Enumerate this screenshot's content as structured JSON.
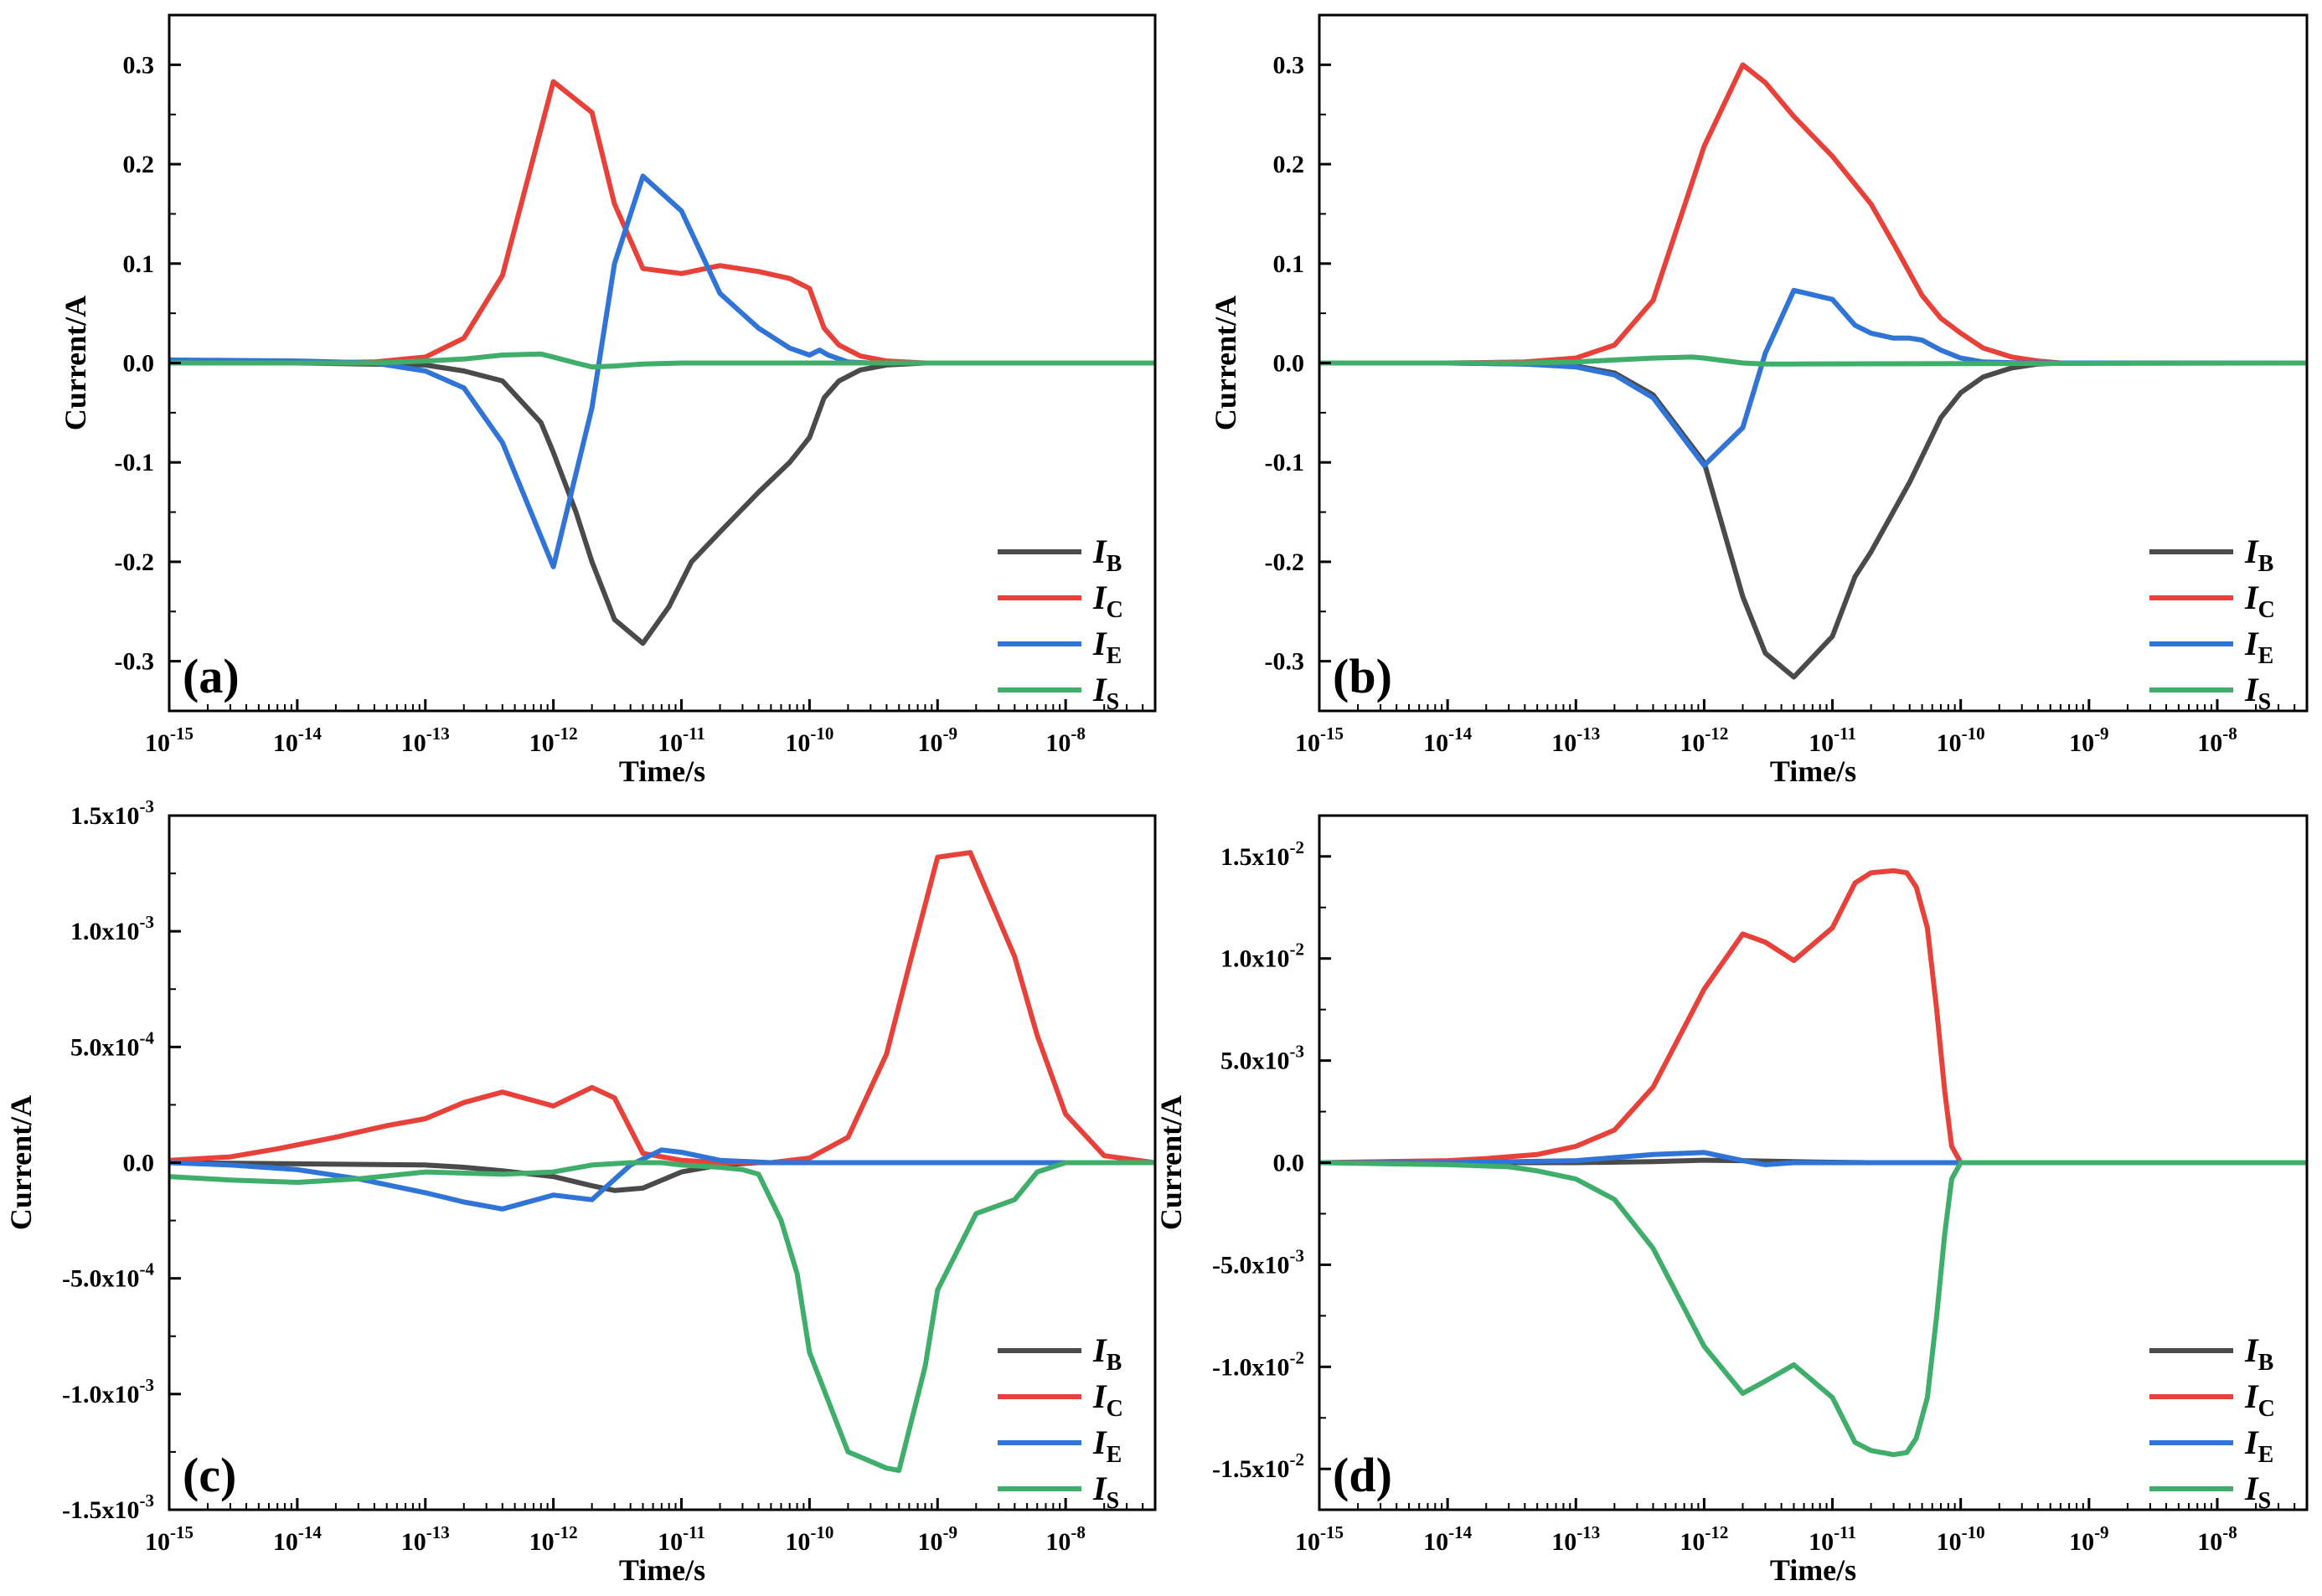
{
  "chart_data": [
    {
      "type": "line",
      "panel_label": "(a)",
      "xlabel": "Time/s",
      "ylabel": "Current/A",
      "x_scale": "log",
      "xlim": [
        1e-15,
        5e-08
      ],
      "ylim": [
        -0.35,
        0.35
      ],
      "x_tick_exponents": [
        "-15",
        "-14",
        "-13",
        "-12",
        "-11",
        "-10",
        "-9",
        "-8"
      ],
      "y_ticks": [
        -0.3,
        -0.2,
        -0.1,
        0.0,
        0.1,
        0.2,
        0.3
      ],
      "y_tick_labels": [
        "-0.3",
        "-0.2",
        "-0.1",
        "0.0",
        "0.1",
        "0.2",
        "0.3"
      ],
      "legend_position": "bottom-right",
      "series": [
        {
          "name": "I_B",
          "color": "#4a4a4a",
          "x": [
            1e-15,
            1e-14,
            1e-13,
            2e-13,
            4e-13,
            8e-13,
            1e-12,
            1.5e-12,
            2e-12,
            3e-12,
            5e-12,
            8e-12,
            1.2e-11,
            2e-11,
            4e-11,
            7e-11,
            1e-10,
            1.3e-10,
            1.7e-10,
            2.5e-10,
            4e-10,
            8e-10,
            5e-08
          ],
          "y": [
            0.0,
            0.0,
            -0.002,
            -0.008,
            -0.018,
            -0.06,
            -0.09,
            -0.15,
            -0.2,
            -0.258,
            -0.282,
            -0.245,
            -0.2,
            -0.17,
            -0.13,
            -0.1,
            -0.075,
            -0.035,
            -0.018,
            -0.007,
            -0.002,
            0.0,
            0.0
          ]
        },
        {
          "name": "I_C",
          "color": "#e8413a",
          "x": [
            1e-15,
            1e-14,
            4e-14,
            1e-13,
            2e-13,
            4e-13,
            1e-12,
            2e-12,
            3e-12,
            5e-12,
            1e-11,
            2e-11,
            4e-11,
            7e-11,
            1e-10,
            1.3e-10,
            1.7e-10,
            2.5e-10,
            4e-10,
            8e-10,
            5e-08
          ],
          "y": [
            0.0,
            0.0,
            0.001,
            0.006,
            0.025,
            0.088,
            0.283,
            0.252,
            0.16,
            0.095,
            0.09,
            0.098,
            0.092,
            0.085,
            0.075,
            0.035,
            0.018,
            0.007,
            0.002,
            0.0,
            0.0
          ]
        },
        {
          "name": "I_E",
          "color": "#2f74d6",
          "x": [
            1e-15,
            1e-14,
            4e-14,
            1e-13,
            2e-13,
            4e-13,
            1e-12,
            2e-12,
            3e-12,
            5e-12,
            1e-11,
            2e-11,
            4e-11,
            7e-11,
            1e-10,
            1.2e-10,
            1.4e-10,
            2e-10,
            3e-10,
            5e-08
          ],
          "y": [
            0.003,
            0.002,
            0.0,
            -0.008,
            -0.025,
            -0.08,
            -0.205,
            -0.045,
            0.1,
            0.188,
            0.153,
            0.07,
            0.035,
            0.015,
            0.008,
            0.013,
            0.008,
            0.001,
            0.0,
            0.0
          ]
        },
        {
          "name": "I_S",
          "color": "#3fae6a",
          "x": [
            1e-15,
            4e-14,
            1e-13,
            2e-13,
            4e-13,
            8e-13,
            1e-12,
            1.5e-12,
            2e-12,
            3e-12,
            5e-12,
            1e-11,
            5e-08
          ],
          "y": [
            0.0,
            0.0,
            0.002,
            0.004,
            0.008,
            0.009,
            0.006,
            0.0,
            -0.004,
            -0.003,
            -0.001,
            0.0,
            0.0
          ]
        }
      ]
    },
    {
      "type": "line",
      "panel_label": "(b)",
      "xlabel": "Time/s",
      "ylabel": "Current/A",
      "x_scale": "log",
      "xlim": [
        1e-15,
        5e-08
      ],
      "ylim": [
        -0.35,
        0.35
      ],
      "x_tick_exponents": [
        "-15",
        "-14",
        "-13",
        "-12",
        "-11",
        "-10",
        "-9",
        "-8"
      ],
      "y_ticks": [
        -0.3,
        -0.2,
        -0.1,
        0.0,
        0.1,
        0.2,
        0.3
      ],
      "y_tick_labels": [
        "-0.3",
        "-0.2",
        "-0.1",
        "0.0",
        "0.1",
        "0.2",
        "0.3"
      ],
      "legend_position": "bottom-right",
      "series": [
        {
          "name": "I_B",
          "color": "#4a4a4a",
          "x": [
            1e-15,
            1e-14,
            4e-14,
            1e-13,
            2e-13,
            4e-13,
            1e-12,
            2e-12,
            3e-12,
            5e-12,
            1e-11,
            1.5e-11,
            2e-11,
            4e-11,
            7e-11,
            1e-10,
            1.5e-10,
            2.5e-10,
            4e-10,
            6e-10,
            5e-08
          ],
          "y": [
            0.0,
            0.0,
            -0.001,
            -0.003,
            -0.01,
            -0.032,
            -0.1,
            -0.235,
            -0.292,
            -0.316,
            -0.275,
            -0.215,
            -0.19,
            -0.12,
            -0.055,
            -0.03,
            -0.014,
            -0.005,
            -0.001,
            0.0,
            0.0
          ]
        },
        {
          "name": "I_C",
          "color": "#e8413a",
          "x": [
            1e-15,
            1e-14,
            4e-14,
            1e-13,
            2e-13,
            4e-13,
            1e-12,
            2e-12,
            3e-12,
            5e-12,
            1e-11,
            2e-11,
            3e-11,
            5e-11,
            7e-11,
            1e-10,
            1.5e-10,
            2.5e-10,
            4e-10,
            6e-10,
            5e-08
          ],
          "y": [
            0.0,
            0.0,
            0.001,
            0.005,
            0.018,
            0.063,
            0.218,
            0.3,
            0.282,
            0.248,
            0.208,
            0.16,
            0.12,
            0.068,
            0.045,
            0.03,
            0.015,
            0.006,
            0.002,
            0.0,
            0.0
          ]
        },
        {
          "name": "I_E",
          "color": "#2f74d6",
          "x": [
            1e-15,
            1e-14,
            4e-14,
            1e-13,
            2e-13,
            4e-13,
            1e-12,
            2e-12,
            3e-12,
            5e-12,
            1e-11,
            1.5e-11,
            2e-11,
            3e-11,
            4e-11,
            5e-11,
            7e-11,
            1e-10,
            1.5e-10,
            3e-10,
            5e-08
          ],
          "y": [
            0.0,
            0.0,
            -0.001,
            -0.004,
            -0.012,
            -0.035,
            -0.103,
            -0.065,
            0.01,
            0.073,
            0.064,
            0.038,
            0.03,
            0.025,
            0.025,
            0.023,
            0.013,
            0.005,
            0.001,
            0.0,
            0.0
          ]
        },
        {
          "name": "I_S",
          "color": "#3fae6a",
          "x": [
            1e-15,
            4e-14,
            1e-13,
            2e-13,
            4e-13,
            8e-13,
            1e-12,
            1.5e-12,
            2e-12,
            3e-12,
            5e-12,
            5e-08
          ],
          "y": [
            0.0,
            0.0,
            0.001,
            0.003,
            0.005,
            0.006,
            0.005,
            0.002,
            0.0,
            -0.001,
            -0.001,
            0.0
          ]
        }
      ]
    },
    {
      "type": "line",
      "panel_label": "(c)",
      "xlabel": "Time/s",
      "ylabel": "Current/A",
      "x_scale": "log",
      "xlim": [
        1e-15,
        5e-08
      ],
      "ylim": [
        -0.0015,
        0.0015
      ],
      "x_tick_exponents": [
        "-15",
        "-14",
        "-13",
        "-12",
        "-11",
        "-10",
        "-9",
        "-8"
      ],
      "y_ticks": [
        -0.0015,
        -0.001,
        -0.0005,
        0.0,
        0.0005,
        0.001,
        0.0015
      ],
      "y_tick_labels": [
        {
          "mantissa": "-1.5x10",
          "exp": "-3"
        },
        {
          "mantissa": "-1.0x10",
          "exp": "-3"
        },
        {
          "mantissa": "-5.0x10",
          "exp": "-4"
        },
        {
          "mantissa": "0.0",
          "exp": ""
        },
        {
          "mantissa": "5.0x10",
          "exp": "-4"
        },
        {
          "mantissa": "1.0x10",
          "exp": "-3"
        },
        {
          "mantissa": "1.5x10",
          "exp": "-3"
        }
      ],
      "legend_position": "bottom-right",
      "series": [
        {
          "name": "I_B",
          "color": "#4a4a4a",
          "x": [
            1e-15,
            1e-14,
            1e-13,
            2e-13,
            4e-13,
            1e-12,
            2e-12,
            3e-12,
            5e-12,
            1e-11,
            2e-11,
            4e-11,
            1e-10,
            5e-08
          ],
          "y": [
            0.0,
            -5e-06,
            -1e-05,
            -2e-05,
            -3.5e-05,
            -6e-05,
            -0.0001,
            -0.00012,
            -0.00011,
            -4e-05,
            -1e-05,
            0.0,
            0.0,
            0.0
          ]
        },
        {
          "name": "I_C",
          "color": "#e8413a",
          "x": [
            1e-15,
            3e-15,
            7e-15,
            2e-14,
            5e-14,
            1e-13,
            2e-13,
            4e-13,
            1e-12,
            2e-12,
            3e-12,
            5e-12,
            1e-11,
            2e-11,
            5e-11,
            1e-10,
            2e-10,
            4e-10,
            6e-10,
            1e-09,
            1.8e-09,
            4e-09,
            6e-09,
            1e-08,
            2e-08,
            5e-08
          ],
          "y": [
            1e-05,
            2.5e-05,
            6e-05,
            0.00011,
            0.00016,
            0.00019,
            0.00026,
            0.000305,
            0.000245,
            0.000325,
            0.00028,
            4e-05,
            1e-05,
            0.0,
            0.0,
            2e-05,
            0.00011,
            0.00047,
            0.00085,
            0.00132,
            0.00134,
            0.00089,
            0.00055,
            0.00021,
            3e-05,
            0.0
          ]
        },
        {
          "name": "I_E",
          "color": "#2f74d6",
          "x": [
            1e-15,
            3e-15,
            1e-14,
            3e-14,
            1e-13,
            2e-13,
            4e-13,
            1e-12,
            2e-12,
            4e-12,
            7e-12,
            1e-11,
            2e-11,
            5e-11,
            1e-10,
            5e-08
          ],
          "y": [
            0.0,
            -1e-05,
            -3e-05,
            -7e-05,
            -0.00013,
            -0.00017,
            -0.0002,
            -0.00014,
            -0.00016,
            -1e-05,
            5.5e-05,
            4.5e-05,
            1e-05,
            0.0,
            0.0,
            0.0
          ]
        },
        {
          "name": "I_S",
          "color": "#3fae6a",
          "x": [
            1e-15,
            3e-15,
            1e-14,
            3e-14,
            1e-13,
            4e-13,
            1e-12,
            2e-12,
            4e-12,
            7e-12,
            1e-11,
            2e-11,
            3e-11,
            4e-11,
            6e-11,
            8e-11,
            1e-10,
            2e-10,
            4e-10,
            5e-10,
            8e-10,
            1e-09,
            2e-09,
            4e-09,
            6e-09,
            1e-08,
            5e-08
          ],
          "y": [
            -6e-05,
            -7.5e-05,
            -8.5e-05,
            -7e-05,
            -4e-05,
            -5e-05,
            -4e-05,
            -1e-05,
            0.0,
            0.0,
            -1e-05,
            -2e-05,
            -3e-05,
            -5e-05,
            -0.00025,
            -0.00048,
            -0.00082,
            -0.00125,
            -0.00132,
            -0.00133,
            -0.00088,
            -0.00055,
            -0.00022,
            -0.00016,
            -4e-05,
            0.0,
            0.0
          ]
        }
      ]
    },
    {
      "type": "line",
      "panel_label": "(d)",
      "xlabel": "Time/s",
      "ylabel": "Current/A",
      "x_scale": "log",
      "xlim": [
        1e-15,
        5e-08
      ],
      "ylim": [
        -0.017,
        0.017
      ],
      "x_tick_exponents": [
        "-15",
        "-14",
        "-13",
        "-12",
        "-11",
        "-10",
        "-9",
        "-8"
      ],
      "y_ticks": [
        -0.015,
        -0.01,
        -0.005,
        0.0,
        0.005,
        0.01,
        0.015
      ],
      "y_tick_labels": [
        {
          "mantissa": "-1.5x10",
          "exp": "-2"
        },
        {
          "mantissa": "-1.0x10",
          "exp": "-2"
        },
        {
          "mantissa": "-5.0x10",
          "exp": "-3"
        },
        {
          "mantissa": "0.0",
          "exp": ""
        },
        {
          "mantissa": "5.0x10",
          "exp": "-3"
        },
        {
          "mantissa": "1.0x10",
          "exp": "-2"
        },
        {
          "mantissa": "1.5x10",
          "exp": "-2"
        }
      ],
      "legend_position": "bottom-right",
      "series": [
        {
          "name": "I_B",
          "color": "#4a4a4a",
          "x": [
            1e-15,
            1e-13,
            4e-13,
            1e-12,
            2e-12,
            5e-12,
            1e-11,
            2e-11,
            5e-11,
            1e-10,
            5e-08
          ],
          "y": [
            0.0,
            0.0,
            5e-05,
            0.00012,
            0.0001,
            5e-05,
            2e-05,
            0.0,
            0.0,
            0.0,
            0.0
          ]
        },
        {
          "name": "I_C",
          "color": "#e8413a",
          "x": [
            1e-15,
            1e-14,
            2e-14,
            5e-14,
            1e-13,
            2e-13,
            4e-13,
            1e-12,
            2e-12,
            3e-12,
            5e-12,
            1e-11,
            1.5e-11,
            2e-11,
            3e-11,
            3.8e-11,
            4.5e-11,
            5.5e-11,
            6.5e-11,
            7.5e-11,
            8.5e-11,
            1e-10,
            5e-08
          ],
          "y": [
            0.0,
            0.0001,
            0.0002,
            0.0004,
            0.0008,
            0.0016,
            0.0037,
            0.0085,
            0.0112,
            0.0108,
            0.0099,
            0.0115,
            0.0137,
            0.0142,
            0.0143,
            0.0142,
            0.0135,
            0.0115,
            0.0075,
            0.0035,
            0.0008,
            0.0,
            0.0
          ]
        },
        {
          "name": "I_E",
          "color": "#2f74d6",
          "x": [
            1e-15,
            1e-14,
            1e-13,
            4e-13,
            1e-12,
            2e-12,
            3e-12,
            5e-12,
            1e-11,
            2e-11,
            1e-10,
            5e-08
          ],
          "y": [
            0.0,
            0.0,
            0.0001,
            0.0004,
            0.0005,
            0.0001,
            -0.0001,
            0.0,
            0.0,
            0.0,
            0.0,
            0.0
          ]
        },
        {
          "name": "I_S",
          "color": "#3fae6a",
          "x": [
            1e-15,
            1e-14,
            3e-14,
            5e-14,
            1e-13,
            2e-13,
            4e-13,
            1e-12,
            2e-12,
            3e-12,
            5e-12,
            1e-11,
            1.5e-11,
            2e-11,
            3e-11,
            3.8e-11,
            4.5e-11,
            5.5e-11,
            6.5e-11,
            7.5e-11,
            8.5e-11,
            1e-10,
            5e-08
          ],
          "y": [
            0.0,
            -0.0001,
            -0.0002,
            -0.0004,
            -0.0008,
            -0.0018,
            -0.0042,
            -0.009,
            -0.0113,
            -0.0107,
            -0.0099,
            -0.0115,
            -0.0137,
            -0.0141,
            -0.0143,
            -0.0142,
            -0.0135,
            -0.0115,
            -0.0075,
            -0.0035,
            -0.0008,
            0.0,
            0.0
          ]
        }
      ]
    }
  ]
}
